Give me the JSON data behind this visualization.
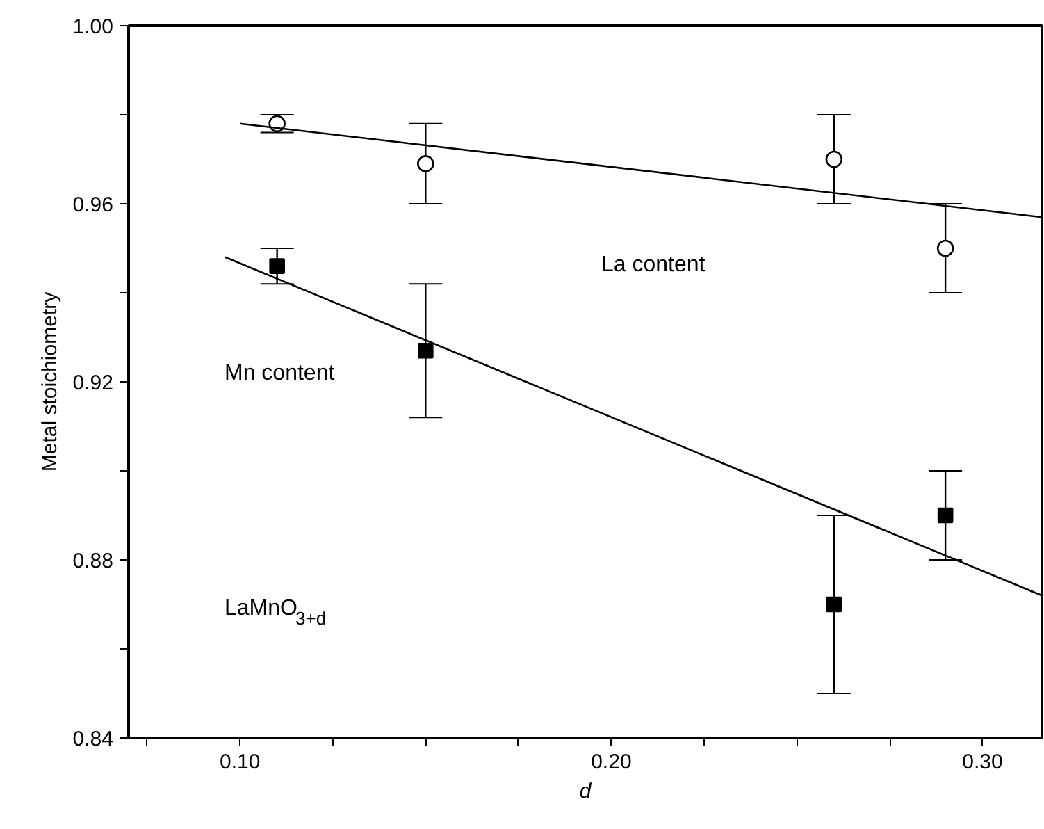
{
  "chart_data": {
    "type": "scatter",
    "xlabel": "d",
    "ylabel": "Metal stoichiometry",
    "xlim": [
      0.07,
      0.316
    ],
    "ylim": [
      0.84,
      1.0
    ],
    "xticks": [
      {
        "value": 0.075,
        "label": null
      },
      {
        "value": 0.1,
        "label": "0.10"
      },
      {
        "value": 0.125,
        "label": null
      },
      {
        "value": 0.15,
        "label": null
      },
      {
        "value": 0.175,
        "label": null
      },
      {
        "value": 0.2,
        "label": "0.20"
      },
      {
        "value": 0.225,
        "label": null
      },
      {
        "value": 0.25,
        "label": null
      },
      {
        "value": 0.275,
        "label": null
      },
      {
        "value": 0.3,
        "label": "0.30"
      }
    ],
    "yticks": [
      0.84,
      {
        "value": 0.86,
        "label": null
      },
      0.88,
      {
        "value": 0.9,
        "label": null
      },
      0.92,
      {
        "value": 0.94,
        "label": null
      },
      0.96,
      {
        "value": 0.98,
        "label": null
      },
      {
        "value": 1.0,
        "label": "1.00"
      }
    ],
    "grid": false,
    "series": [
      {
        "marker": "circle",
        "color": "#000000",
        "x": [
          0.11,
          0.15,
          0.26,
          0.29
        ],
        "values": [
          0.978,
          0.969,
          0.97,
          0.95
        ],
        "errors": [
          [
            0.976,
            0.98
          ],
          [
            0.96,
            0.978
          ],
          [
            0.96,
            0.98
          ],
          [
            0.94,
            0.96
          ]
        ]
      },
      {
        "marker": "square",
        "color": "#000000",
        "x": [
          0.11,
          0.15,
          0.26,
          0.29
        ],
        "values": [
          0.946,
          0.927,
          0.87,
          0.89
        ],
        "errors": [
          [
            0.942,
            0.95
          ],
          [
            0.912,
            0.942
          ],
          [
            0.85,
            0.89
          ],
          [
            0.88,
            0.9
          ]
        ]
      },
      {
        "type": "line",
        "color": "#000000",
        "x": [
          0.1,
          0.316
        ],
        "values": [
          0.978,
          0.957
        ]
      },
      {
        "type": "line",
        "color": "#000000",
        "x": [
          0.096,
          0.316
        ],
        "values": [
          0.948,
          0.872
        ]
      }
    ],
    "annotations": [
      "La content",
      "Mn content",
      "LaMnO$_{3+d}$"
    ]
  }
}
